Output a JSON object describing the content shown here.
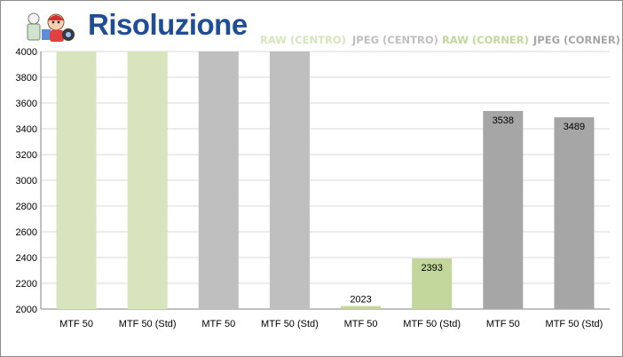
{
  "header": {
    "title": "Risoluzione"
  },
  "colors": {
    "title": "#1f4e96",
    "raw_centro": "#d7e4bd",
    "jpeg_centro": "#bfbfbf",
    "raw_corner": "#c3d69b",
    "jpeg_corner": "#a6a6a6",
    "gridline": "#d9d9d9",
    "axis": "#808080"
  },
  "logo": {
    "icon": "cartoon-mascot-icon"
  },
  "chart_data": {
    "type": "bar",
    "title": "Risoluzione",
    "categories": [
      "MTF 50",
      "MTF 50 (Std)",
      "MTF 50",
      "MTF 50 (Std)",
      "MTF 50",
      "MTF 50 (Std)",
      "MTF 50",
      "MTF 50 (Std)"
    ],
    "values": [
      4000,
      4000,
      4000,
      4000,
      2023,
      2393,
      3538,
      3489
    ],
    "data_labels": [
      "",
      "",
      "",
      "",
      "2023",
      "2393",
      "3538",
      "3489"
    ],
    "bar_groups": [
      "RAW (CENTRO)",
      "RAW (CENTRO)",
      "JPEG (CENTRO)",
      "JPEG (CENTRO)",
      "RAW (CORNER)",
      "RAW (CORNER)",
      "JPEG (CORNER)",
      "JPEG (CORNER)"
    ],
    "legend": [
      {
        "name": "RAW (CENTRO)",
        "color": "#d7e4bd"
      },
      {
        "name": "JPEG (CENTRO)",
        "color": "#bfbfbf"
      },
      {
        "name": "RAW (CORNER)",
        "color": "#c3d69b"
      },
      {
        "name": "JPEG (CORNER)",
        "color": "#a6a6a6"
      }
    ],
    "legend_position": "top",
    "ylim": [
      2000,
      4000
    ],
    "yticks": [
      2000,
      2200,
      2400,
      2600,
      2800,
      3000,
      3200,
      3400,
      3600,
      3800,
      4000
    ],
    "grid": true,
    "xlabel": "",
    "ylabel": ""
  }
}
